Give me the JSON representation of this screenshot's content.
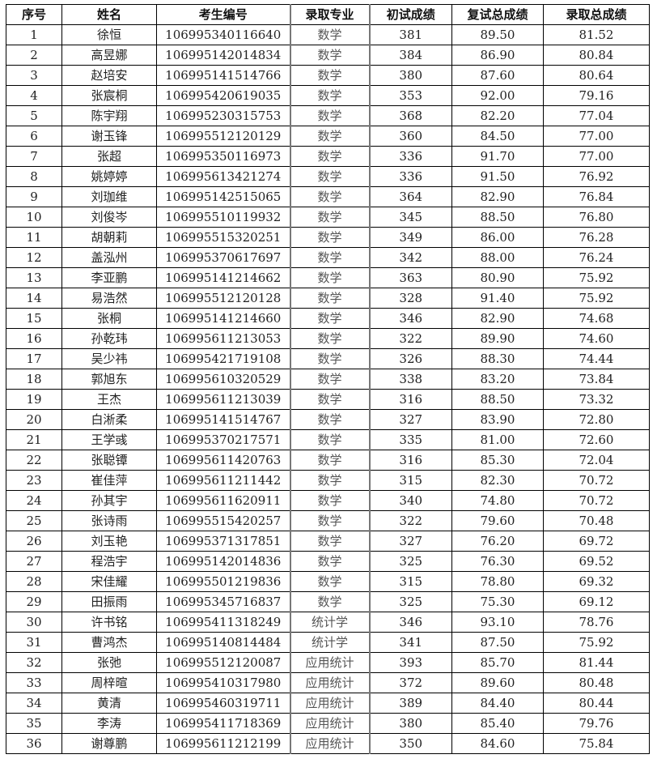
{
  "headers": [
    "序号",
    "姓名",
    "考生编号",
    "录取专业",
    "初试成绩",
    "复试总成绩",
    "录取总成绩"
  ],
  "rows": [
    [
      "1",
      "徐恒",
      "106995340116640",
      "数学",
      "381",
      "89.50",
      "81.52"
    ],
    [
      "2",
      "高昱娜",
      "106995142014834",
      "数学",
      "384",
      "86.90",
      "80.84"
    ],
    [
      "3",
      "赵培安",
      "106995141514766",
      "数学",
      "380",
      "87.60",
      "80.64"
    ],
    [
      "4",
      "张宸桐",
      "106995420619035",
      "数学",
      "353",
      "92.00",
      "79.16"
    ],
    [
      "5",
      "陈宇翔",
      "106995230315753",
      "数学",
      "368",
      "82.20",
      "77.04"
    ],
    [
      "6",
      "谢玉锋",
      "106995512120129",
      "数学",
      "360",
      "84.50",
      "77.00"
    ],
    [
      "7",
      "张超",
      "106995350116973",
      "数学",
      "336",
      "91.70",
      "77.00"
    ],
    [
      "8",
      "姚婷婷",
      "106995613421274",
      "数学",
      "336",
      "91.50",
      "76.92"
    ],
    [
      "9",
      "刘珈维",
      "106995142515065",
      "数学",
      "364",
      "82.90",
      "76.84"
    ],
    [
      "10",
      "刘俊岑",
      "106995510119932",
      "数学",
      "345",
      "88.50",
      "76.80"
    ],
    [
      "11",
      "胡朝莉",
      "106995515320251",
      "数学",
      "349",
      "86.00",
      "76.28"
    ],
    [
      "12",
      "盖泓州",
      "106995370617697",
      "数学",
      "342",
      "88.00",
      "76.24"
    ],
    [
      "13",
      "李亚鹏",
      "106995141214662",
      "数学",
      "363",
      "80.90",
      "75.92"
    ],
    [
      "14",
      "易浩然",
      "106995512120128",
      "数学",
      "328",
      "91.40",
      "75.92"
    ],
    [
      "15",
      "张桐",
      "106995141214660",
      "数学",
      "346",
      "82.90",
      "74.68"
    ],
    [
      "16",
      "孙乾玮",
      "106995611213053",
      "数学",
      "322",
      "89.90",
      "74.60"
    ],
    [
      "17",
      "吴少祎",
      "106995421719108",
      "数学",
      "326",
      "88.30",
      "74.44"
    ],
    [
      "18",
      "郭旭东",
      "106995610320529",
      "数学",
      "338",
      "83.20",
      "73.84"
    ],
    [
      "19",
      "王杰",
      "106995611213039",
      "数学",
      "316",
      "88.50",
      "73.32"
    ],
    [
      "20",
      "白淅柔",
      "106995141514767",
      "数学",
      "327",
      "83.90",
      "72.80"
    ],
    [
      "21",
      "王学彧",
      "106995370217571",
      "数学",
      "335",
      "81.00",
      "72.60"
    ],
    [
      "22",
      "张聪镡",
      "106995611420763",
      "数学",
      "316",
      "85.30",
      "72.04"
    ],
    [
      "23",
      "崔佳萍",
      "106995611211442",
      "数学",
      "315",
      "82.30",
      "70.72"
    ],
    [
      "24",
      "孙其宇",
      "106995611620911",
      "数学",
      "340",
      "74.80",
      "70.72"
    ],
    [
      "25",
      "张诗雨",
      "106995515420257",
      "数学",
      "322",
      "79.60",
      "70.48"
    ],
    [
      "26",
      "刘玉艳",
      "106995371317851",
      "数学",
      "327",
      "76.20",
      "69.72"
    ],
    [
      "27",
      "程浩宇",
      "106995142014836",
      "数学",
      "325",
      "76.30",
      "69.52"
    ],
    [
      "28",
      "宋佳耀",
      "106995501219836",
      "数学",
      "315",
      "78.80",
      "69.32"
    ],
    [
      "29",
      "田振雨",
      "106995345716837",
      "数学",
      "325",
      "75.30",
      "69.12"
    ],
    [
      "30",
      "许书铭",
      "106995411318249",
      "统计学",
      "346",
      "93.10",
      "78.76"
    ],
    [
      "31",
      "曹鸿杰",
      "106995140814484",
      "统计学",
      "341",
      "87.50",
      "75.92"
    ],
    [
      "32",
      "张弛",
      "106995512120087",
      "应用统计",
      "393",
      "85.70",
      "81.44"
    ],
    [
      "33",
      "周梓暄",
      "106995410317980",
      "应用统计",
      "372",
      "89.60",
      "80.48"
    ],
    [
      "34",
      "黄清",
      "106995460319711",
      "应用统计",
      "389",
      "84.40",
      "80.44"
    ],
    [
      "35",
      "李涛",
      "106995411718369",
      "应用统计",
      "380",
      "85.40",
      "79.76"
    ],
    [
      "36",
      "谢尊鹏",
      "106995611212199",
      "应用统计",
      "350",
      "84.60",
      "75.84"
    ]
  ]
}
